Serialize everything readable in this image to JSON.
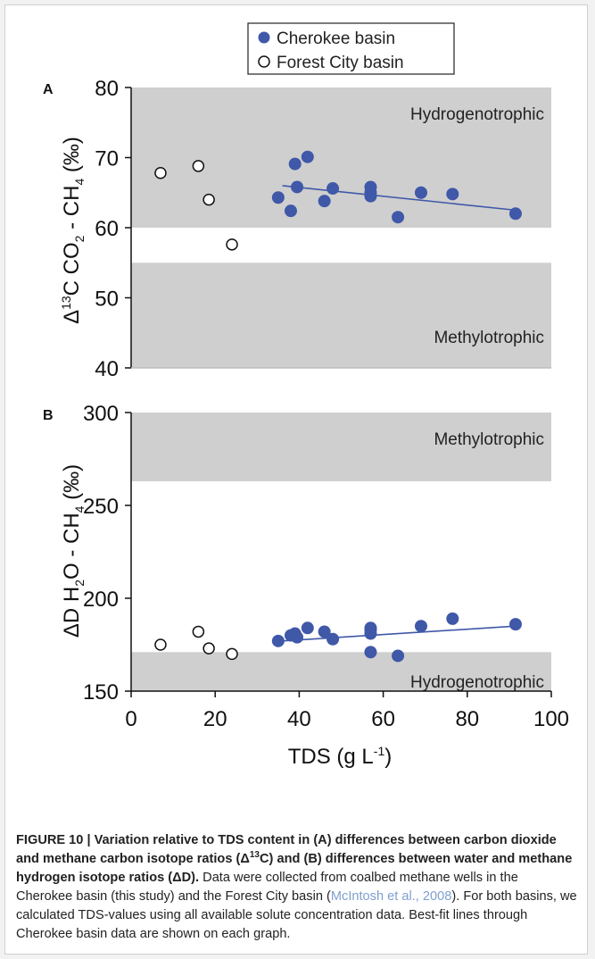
{
  "legend": {
    "cherokee": "Cherokee basin",
    "forest_city": "Forest City basin"
  },
  "colors": {
    "cherokee": "#3f58a8",
    "band": "#cfcfcf",
    "fit_line": "#3f58a8"
  },
  "chart_data": [
    {
      "type": "scatter",
      "panel_label": "A",
      "ylabel": "Δ13C CO2 - CH4 (‰)",
      "ylim": [
        40,
        80
      ],
      "yticks": [
        40,
        50,
        60,
        70,
        80
      ],
      "xlim": [
        0,
        100
      ],
      "bands": [
        {
          "label": "Hydrogenotrophic",
          "y_from": 60,
          "y_to": 80
        },
        {
          "label": "Methylotrophic",
          "y_from": 40,
          "y_to": 55
        }
      ],
      "series": [
        {
          "name": "Cherokee basin",
          "points": [
            [
              35,
              64.3
            ],
            [
              38,
              62.4
            ],
            [
              39,
              69.1
            ],
            [
              39.5,
              65.8
            ],
            [
              42,
              70.1
            ],
            [
              46,
              63.8
            ],
            [
              48,
              65.6
            ],
            [
              57,
              65.8
            ],
            [
              57,
              65
            ],
            [
              57,
              64.5
            ],
            [
              63.5,
              61.5
            ],
            [
              69,
              65
            ],
            [
              76.5,
              64.8
            ],
            [
              91.5,
              62
            ]
          ]
        },
        {
          "name": "Forest City basin",
          "points": [
            [
              7,
              67.8
            ],
            [
              16,
              68.8
            ],
            [
              18.5,
              64
            ],
            [
              24,
              57.6
            ]
          ]
        }
      ],
      "fit_line": {
        "x": [
          36,
          91.5
        ],
        "y": [
          66,
          62.5
        ]
      }
    },
    {
      "type": "scatter",
      "panel_label": "B",
      "ylabel": "ΔD H2O - CH4 (‰)",
      "ylim": [
        150,
        300
      ],
      "yticks": [
        150,
        200,
        250,
        300
      ],
      "xlim": [
        0,
        100
      ],
      "xticks": [
        0,
        20,
        40,
        60,
        80,
        100
      ],
      "xlabel": "TDS (g L-1)",
      "bands": [
        {
          "label": "Methylotrophic",
          "y_from": 263,
          "y_to": 300
        },
        {
          "label": "Hydrogenotrophic",
          "y_from": 150,
          "y_to": 171
        }
      ],
      "series": [
        {
          "name": "Cherokee basin",
          "points": [
            [
              35,
              177
            ],
            [
              38,
              180
            ],
            [
              39,
              181
            ],
            [
              39.5,
              179
            ],
            [
              42,
              184
            ],
            [
              46,
              182
            ],
            [
              48,
              178
            ],
            [
              57,
              184
            ],
            [
              57,
              183
            ],
            [
              57,
              181
            ],
            [
              57,
              171
            ],
            [
              63.5,
              169
            ],
            [
              69,
              185
            ],
            [
              76.5,
              189
            ],
            [
              91.5,
              186
            ]
          ]
        },
        {
          "name": "Forest City basin",
          "points": [
            [
              7,
              175
            ],
            [
              16,
              182
            ],
            [
              18.5,
              173
            ],
            [
              24,
              170
            ]
          ]
        }
      ],
      "fit_line": {
        "x": [
          36,
          91.5
        ],
        "y": [
          177,
          185
        ]
      }
    }
  ],
  "caption": {
    "bold_prefix": "FIGURE 10 | Variation relative to TDS content in (A) differences between carbon dioxide and methane carbon isotope ratios (Δ",
    "bold_sup": "13",
    "bold_mid": "C) and (B) differences between water and methane hydrogen isotope ratios (ΔD).",
    "text_1": " Data were collected from coalbed methane wells in the Cherokee basin (this study) and the Forest City basin (",
    "citation": "McIntosh et al., 2008",
    "text_2": "). For both basins, we calculated TDS-values using all available solute concentration data. Best-fit lines through Cherokee basin data are shown on each graph."
  }
}
